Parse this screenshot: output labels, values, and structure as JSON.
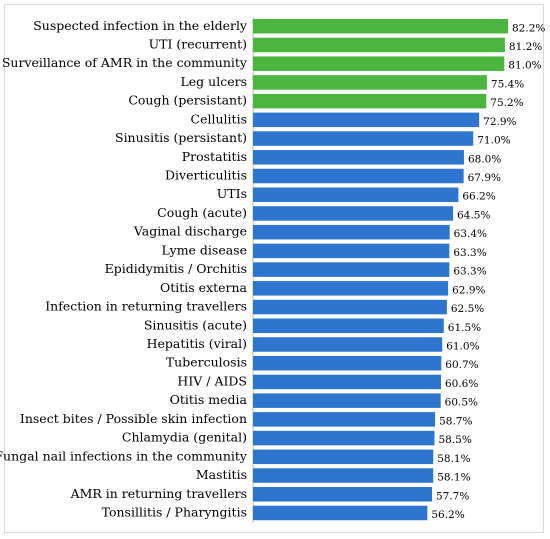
{
  "chart_data": {
    "type": "bar",
    "orientation": "horizontal",
    "grid": false,
    "legend": "none",
    "categories": [
      "Suspected infection in the elderly",
      "UTI (recurrent)",
      "Surveillance of AMR in the community",
      "Leg ulcers",
      "Cough (persistant)",
      "Cellulitis",
      "Sinusitis (persistant)",
      "Prostatitis",
      "Diverticulitis",
      "UTIs",
      "Cough (acute)",
      "Vaginal discharge",
      "Lyme disease",
      "Epididymitis / Orchitis",
      "Otitis externa",
      "Infection in returning travellers",
      "Sinusitis (acute)",
      "Hepatitis (viral)",
      "Tuberculosis",
      "HIV / AIDS",
      "Otitis media",
      "Insect bites / Possible skin infection",
      "Chlamydia (genital)",
      "Fungal nail infections in the community",
      "Mastitis",
      "AMR in returning travellers",
      "Tonsillitis / Pharyngitis"
    ],
    "values": [
      82.2,
      81.2,
      81.0,
      75.4,
      75.2,
      72.9,
      71.0,
      68.0,
      67.9,
      66.2,
      64.5,
      63.4,
      63.3,
      63.3,
      62.9,
      62.5,
      61.5,
      61.0,
      60.7,
      60.6,
      60.5,
      58.7,
      58.5,
      58.1,
      58.1,
      57.7,
      56.2
    ],
    "value_labels": [
      "82.2%",
      "81.2%",
      "81.0%",
      "75.4%",
      "75.2%",
      "72.9%",
      "71.0%",
      "68.0%",
      "67.9%",
      "66.2%",
      "64.5%",
      "63.4%",
      "63.3%",
      "63.3%",
      "62.9%",
      "62.5%",
      "61.5%",
      "61.0%",
      "60.7%",
      "60.6%",
      "60.5%",
      "58.7%",
      "58.5%",
      "58.1%",
      "58.1%",
      "57.7%",
      "56.2%"
    ],
    "bar_colors": [
      "#4cb53f",
      "#4cb53f",
      "#4cb53f",
      "#4cb53f",
      "#4cb53f",
      "#2e75cf",
      "#2e75cf",
      "#2e75cf",
      "#2e75cf",
      "#2e75cf",
      "#2e75cf",
      "#2e75cf",
      "#2e75cf",
      "#2e75cf",
      "#2e75cf",
      "#2e75cf",
      "#2e75cf",
      "#2e75cf",
      "#2e75cf",
      "#2e75cf",
      "#2e75cf",
      "#2e75cf",
      "#2e75cf",
      "#2e75cf",
      "#2e75cf",
      "#2e75cf",
      "#2e75cf"
    ],
    "highlight_color": "#4cb53f",
    "default_color": "#2e75cf",
    "xlim": [
      0,
      82.2
    ]
  }
}
